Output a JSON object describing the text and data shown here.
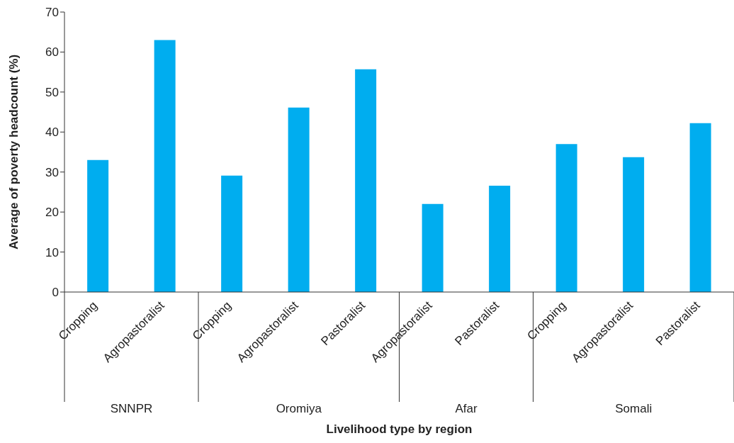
{
  "chart_data": {
    "type": "bar",
    "xlabel": "Livelihood type by region",
    "ylabel": "Average of poverty headcount (%)",
    "categories": [
      "Cropping",
      "Agropastoralist",
      "Cropping",
      "Agropastoralist",
      "Pastoralist",
      "Agropastoralist",
      "Pastoralist",
      "Cropping",
      "Agropastoralist",
      "Pastoralist"
    ],
    "values": [
      33,
      63,
      29.1,
      46.1,
      55.7,
      22,
      26.6,
      37,
      33.7,
      42.2
    ],
    "color": "#00adef",
    "ylim": [
      0,
      70
    ],
    "yticks": [
      0,
      10,
      20,
      30,
      40,
      50,
      60,
      70
    ],
    "annotations": [
      "SNNPR",
      "Oromiya",
      "Afar",
      "Somali"
    ]
  }
}
